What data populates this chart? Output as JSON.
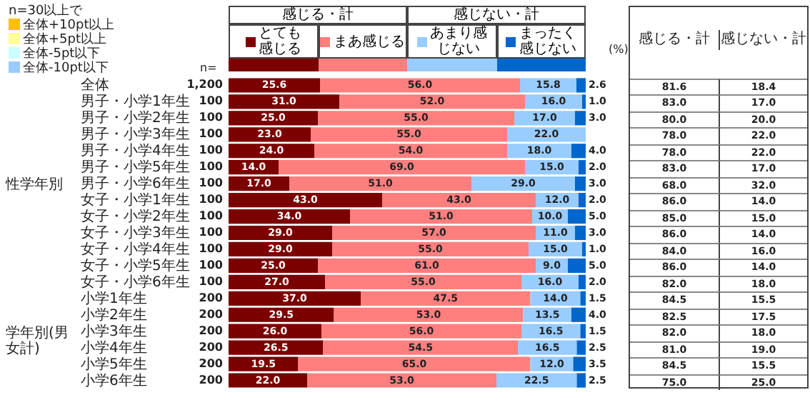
{
  "chart_data": [
    {
      "type": "bar",
      "orientation": "horizontal",
      "stacked": true,
      "legend": "top",
      "tick_labels": "y",
      "categories": [
        "全体",
        "男子・小学1年生",
        "男子・小学2年生",
        "男子・小学3年生",
        "男子・小学4年生",
        "男子・小学5年生",
        "男子・小学6年生",
        "女子・小学1年生",
        "女子・小学2年生",
        "女子・小学3年生",
        "女子・小学4年生",
        "女子・小学5年生",
        "女子・小学6年生",
        "小学1年生",
        "小学2年生",
        "小学3年生",
        "小学4年生",
        "小学5年生",
        "小学6年生"
      ],
      "series": [
        {
          "name": "とても感じる",
          "color": "#7b0000",
          "values": [
            25.6,
            31.0,
            25.0,
            23.0,
            24.0,
            14.0,
            17.0,
            43.0,
            34.0,
            29.0,
            29.0,
            25.0,
            27.0,
            37.0,
            29.5,
            26.0,
            26.5,
            19.5,
            22.0
          ],
          "value_labels": [
            "25.6",
            "31.0",
            "25.0",
            "23.0",
            "24.0",
            "14.0",
            "17.0",
            "43.0",
            "34.0",
            "29.0",
            "29.0",
            "25.0",
            "27.0",
            "37.0",
            "29.5",
            "26.0",
            "26.5",
            "19.5",
            "22.0"
          ]
        },
        {
          "name": "まあ感じる",
          "color": "#ff7f7f",
          "values": [
            56.0,
            52.0,
            55.0,
            55.0,
            54.0,
            69.0,
            51.0,
            43.0,
            51.0,
            57.0,
            55.0,
            61.0,
            55.0,
            47.5,
            53.0,
            56.0,
            54.5,
            65.0,
            53.0
          ],
          "value_labels": [
            "56.0",
            "52.0",
            "55.0",
            "55.0",
            "54.0",
            "69.0",
            "51.0",
            "43.0",
            "51.0",
            "57.0",
            "55.0",
            "61.0",
            "55.0",
            "47.5",
            "53.0",
            "56.0",
            "54.5",
            "65.0",
            "53.0"
          ]
        },
        {
          "name": "あまり感じない",
          "color": "#99ccff",
          "values": [
            15.8,
            16.0,
            17.0,
            22.0,
            18.0,
            15.0,
            29.0,
            12.0,
            10.0,
            11.0,
            15.0,
            9.0,
            16.0,
            14.0,
            13.5,
            16.5,
            16.5,
            12.0,
            22.5
          ],
          "value_labels": [
            "15.8",
            "16.0",
            "17.0",
            "22.0",
            "18.0",
            "15.0",
            "29.0",
            "12.0",
            "10.0",
            "11.0",
            "15.0",
            "9.0",
            "16.0",
            "14.0",
            "13.5",
            "16.5",
            "16.5",
            "12.0",
            "22.5"
          ]
        },
        {
          "name": "まったく感じない",
          "color": "#0066cc",
          "values": [
            2.6,
            1.0,
            3.0,
            null,
            4.0,
            2.0,
            3.0,
            2.0,
            5.0,
            3.0,
            1.0,
            5.0,
            2.0,
            1.5,
            4.0,
            1.5,
            2.5,
            3.5,
            2.5
          ],
          "value_labels": [
            "2.6",
            "1.0",
            "3.0",
            null,
            "4.0",
            "2.0",
            "3.0",
            "2.0",
            "5.0",
            "3.0",
            "1.0",
            "5.0",
            "2.0",
            "1.5",
            "4.0",
            "1.5",
            "2.5",
            "3.5",
            "2.5"
          ]
        }
      ],
      "annotations": [
        "n=30以上で",
        "全体+10pt以上",
        "全体+5pt以上",
        "全体-5pt以下",
        "全体-10pt以下",
        "感じる・計",
        "感じない・計",
        "n=",
        "(%)",
        "性学年別",
        "学年別(男女計)",
        "1,200",
        "100",
        "100",
        "100",
        "100",
        "100",
        "100",
        "100",
        "100",
        "100",
        "100",
        "100",
        "100",
        "200",
        "200",
        "200",
        "200",
        "200",
        "200"
      ]
    },
    {
      "type": "other",
      "annotations": [
        "感じる・計",
        "感じない・計",
        "81.6",
        "18.4",
        "83.0",
        "17.0",
        "80.0",
        "20.0",
        "78.0",
        "22.0",
        "78.0",
        "22.0",
        "83.0",
        "17.0",
        "68.0",
        "32.0",
        "86.0",
        "14.0",
        "85.0",
        "15.0",
        "86.0",
        "14.0",
        "84.0",
        "16.0",
        "86.0",
        "14.0",
        "82.0",
        "18.0",
        "84.5",
        "15.5",
        "82.5",
        "17.5",
        "82.0",
        "18.0",
        "81.0",
        "19.0",
        "84.5",
        "15.5",
        "75.0",
        "25.0"
      ]
    }
  ]
}
